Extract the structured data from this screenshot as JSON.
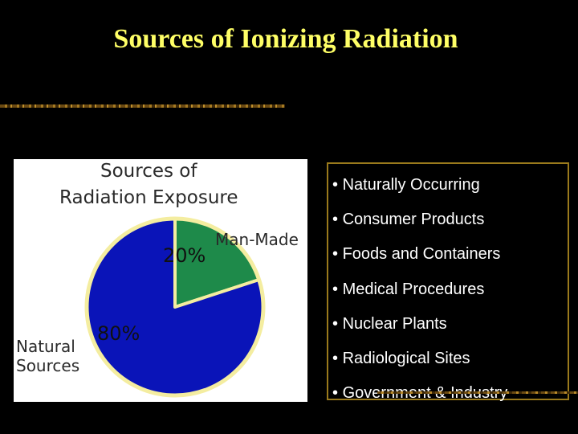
{
  "slide": {
    "title": "Sources of Ionizing Radiation",
    "bullet_symbol": "•",
    "bullets": [
      "Naturally Occurring",
      "Consumer Products",
      "Foods and Containers",
      "Medical Procedures",
      "Nuclear Plants",
      "Radiological Sites",
      "Government & Industry"
    ]
  },
  "chart_data": {
    "type": "pie",
    "title_lines": [
      "Sources of",
      "Radiation Exposure"
    ],
    "slices": [
      {
        "label": "Man-Made",
        "value": 20,
        "value_label": "20%",
        "color": "#1e8a4a"
      },
      {
        "label_lines": [
          "Natural",
          "Sources"
        ],
        "value": 80,
        "value_label": "80%",
        "color": "#0a14b8"
      }
    ],
    "outline_color": "#f4eda0"
  },
  "colors": {
    "background": "#000000",
    "title": "#ffff66",
    "bullet_text": "#ffffff",
    "box_border": "#9a7a1c"
  }
}
